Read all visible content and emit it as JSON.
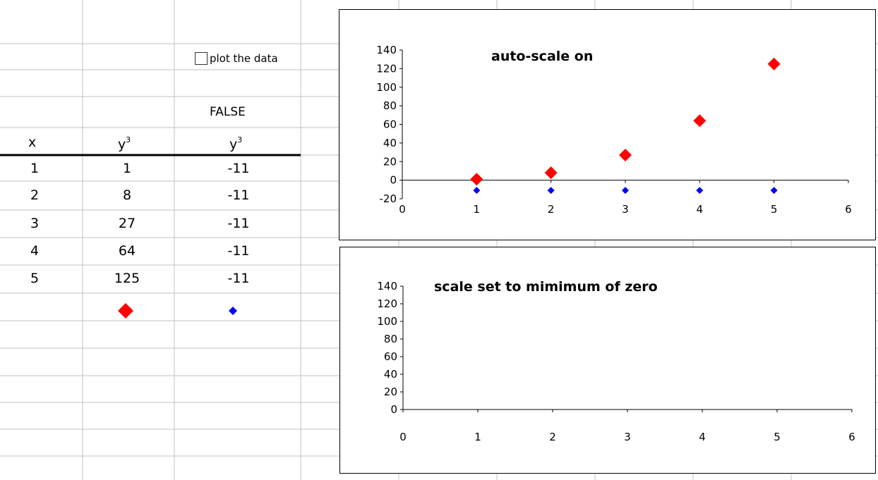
{
  "table": {
    "checkbox_label": "plot the data",
    "checkbox_checked": false,
    "checkbox_value": "FALSE",
    "header_x": "x",
    "header_y_col1": "y",
    "header_y_col1_sup": "3",
    "header_y_col2": "y",
    "header_y_col2_sup": "3",
    "rows": [
      {
        "x": "1",
        "y": "1",
        "y2": "-11"
      },
      {
        "x": "2",
        "y": "8",
        "y2": "-11"
      },
      {
        "x": "3",
        "y": "27",
        "y2": "-11"
      },
      {
        "x": "4",
        "y": "64",
        "y2": "-11"
      },
      {
        "x": "5",
        "y": "125",
        "y2": "-11"
      }
    ],
    "legend_markers": [
      {
        "series": "y3",
        "color": "#ff0000",
        "shape": "diamond-large"
      },
      {
        "series": "y3_false",
        "color": "#0000ff",
        "shape": "diamond-small"
      }
    ]
  },
  "colors": {
    "gridline": "#c0c0c0",
    "series_red": "#ff0000",
    "series_blue": "#0000ff"
  },
  "chart_data": [
    {
      "type": "scatter",
      "title": "auto-scale on",
      "xlim": [
        0,
        6
      ],
      "ylim": [
        -20,
        140
      ],
      "x_ticks": [
        "0",
        "1",
        "2",
        "3",
        "4",
        "5",
        "6"
      ],
      "y_ticks": [
        "-20",
        "0",
        "20",
        "40",
        "60",
        "80",
        "100",
        "120",
        "140"
      ],
      "grid": false,
      "series": [
        {
          "color": "#ff0000",
          "marker": "diamond-large",
          "x": [
            1,
            2,
            3,
            4,
            5
          ],
          "y": [
            1,
            8,
            27,
            64,
            125
          ]
        },
        {
          "color": "#0000ff",
          "marker": "diamond-small",
          "x": [
            1,
            2,
            3,
            4,
            5
          ],
          "y": [
            -11,
            -11,
            -11,
            -11,
            -11
          ]
        }
      ]
    },
    {
      "type": "scatter",
      "title": "scale set to mimimum of zero",
      "xlim": [
        0,
        6
      ],
      "ylim": [
        0,
        140
      ],
      "x_ticks": [
        "0",
        "1",
        "2",
        "3",
        "4",
        "5",
        "6"
      ],
      "y_ticks": [
        "0",
        "20",
        "40",
        "60",
        "80",
        "100",
        "120",
        "140"
      ],
      "grid": false,
      "series": []
    }
  ]
}
